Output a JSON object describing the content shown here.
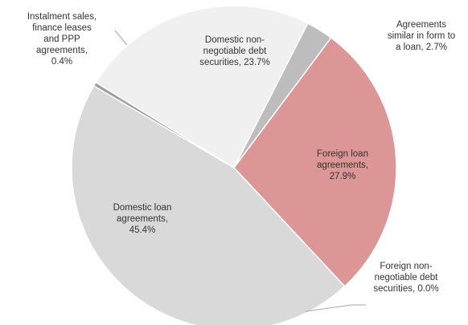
{
  "chart_data": {
    "type": "pie",
    "title": "",
    "start_angle_deg": 27,
    "direction": "clockwise",
    "slices": [
      {
        "id": "agreements-similar-to-loan",
        "value": 2.7,
        "color": "#bdbdbd",
        "label_lines": [
          "Agreements",
          "similar in form to",
          "a loan, 2.7%"
        ]
      },
      {
        "id": "foreign-loan-agreements",
        "value": 27.9,
        "color": "#dc9696",
        "label_lines": [
          "Foreign loan",
          "agreements,",
          "27.9%"
        ]
      },
      {
        "id": "foreign-non-negotiable-debt-securities",
        "value": 0.0,
        "color": "#c8c8c8",
        "label_lines": [
          "Foreign non-",
          "negotiable debt",
          "securities, 0.0%"
        ]
      },
      {
        "id": "domestic-loan-agreements",
        "value": 45.4,
        "color": "#d9d9d9",
        "label_lines": [
          "Domestic loan",
          "agreements,",
          "45.4%"
        ]
      },
      {
        "id": "instalment-sales-finance-leases-ppp",
        "value": 0.4,
        "color": "#9e9e9e",
        "label_lines": [
          "Instalment sales,",
          "finance leases",
          "and PPP",
          "agreements,",
          "0.4%"
        ]
      },
      {
        "id": "domestic-non-negotiable-debt-securities",
        "value": 23.7,
        "color": "#f0f0f0",
        "label_lines": [
          "Domestic non-",
          "negotiable debt",
          "securities, 23.7%"
        ]
      }
    ]
  }
}
